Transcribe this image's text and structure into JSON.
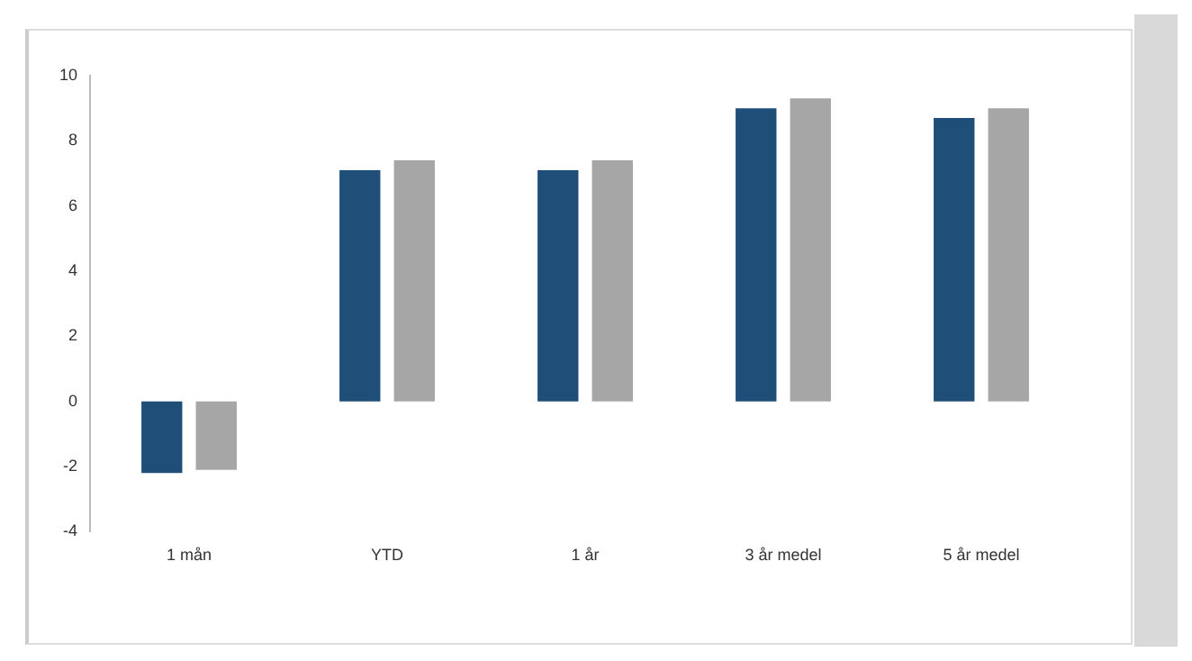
{
  "chart_data": {
    "type": "bar",
    "categories": [
      "1 mån",
      "YTD",
      "1 år",
      "3 år medel",
      "5 år medel"
    ],
    "series": [
      {
        "color": "#1f4e79",
        "values": [
          -2.2,
          7.1,
          7.1,
          9.0,
          8.7
        ]
      },
      {
        "color": "#a6a6a6",
        "values": [
          -2.1,
          7.4,
          7.4,
          9.3,
          9.0
        ]
      }
    ],
    "ylim": [
      -4,
      10
    ],
    "yticks": [
      -4,
      -2,
      0,
      2,
      4,
      6,
      8,
      10
    ],
    "grid": false,
    "legend": false
  }
}
